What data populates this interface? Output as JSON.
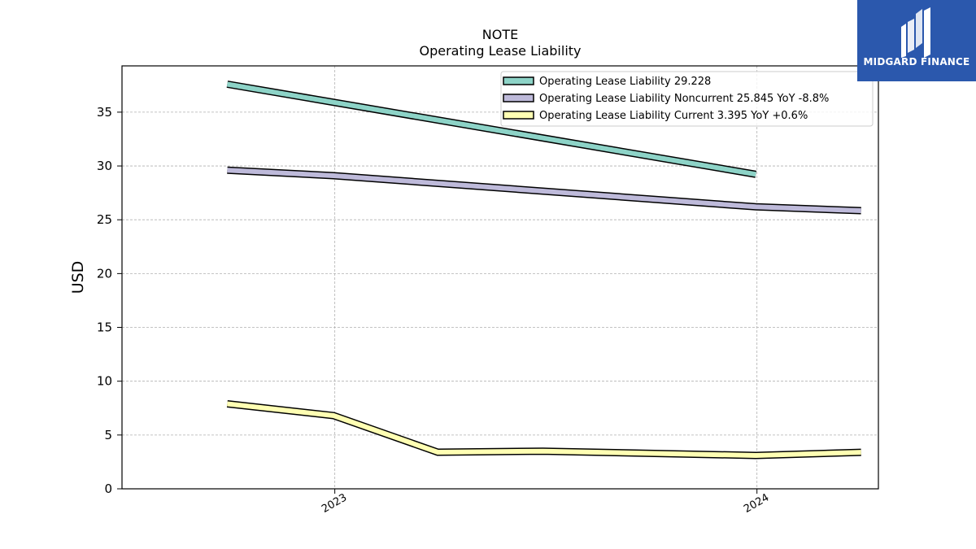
{
  "chart_data": {
    "type": "line",
    "title": "NOTE",
    "subtitle": "Operating Lease Liability",
    "ylabel": "USD",
    "xlabel": "",
    "ylim": [
      0,
      39.3
    ],
    "xlim": [
      "2022-07-01",
      "2024-04-15"
    ],
    "yticks": [
      0,
      5,
      10,
      15,
      20,
      25,
      30,
      35
    ],
    "xticks": [
      {
        "date": "2023-01-01",
        "label": "2023"
      },
      {
        "date": "2024-01-01",
        "label": "2024"
      }
    ],
    "grid": true,
    "legend_position": "top-right",
    "series": [
      {
        "name": "Operating Lease Liability",
        "legend_label": "Operating Lease Liability  29.228",
        "color": "#8dd3c7",
        "points": [
          {
            "x": "2022-09-30",
            "y": 37.6
          },
          {
            "x": "2023-12-31",
            "y": 29.228
          }
        ]
      },
      {
        "name": "Operating Lease Liability Noncurrent",
        "legend_label": "Operating Lease Liability Noncurrent  25.845 YoY -8.8%",
        "color": "#bebada",
        "points": [
          {
            "x": "2022-09-30",
            "y": 29.6
          },
          {
            "x": "2022-12-31",
            "y": 29.1
          },
          {
            "x": "2023-12-31",
            "y": 26.2
          },
          {
            "x": "2024-03-31",
            "y": 25.845
          }
        ]
      },
      {
        "name": "Operating Lease Liability Current",
        "legend_label": "Operating Lease Liability Current  3.395 YoY +0.6%",
        "color": "#ffffb3",
        "points": [
          {
            "x": "2022-09-30",
            "y": 7.9
          },
          {
            "x": "2022-12-31",
            "y": 6.8
          },
          {
            "x": "2023-03-31",
            "y": 3.4
          },
          {
            "x": "2023-06-30",
            "y": 3.5
          },
          {
            "x": "2023-12-31",
            "y": 3.1
          },
          {
            "x": "2024-03-31",
            "y": 3.395
          }
        ]
      }
    ]
  },
  "logo": {
    "text": "MIDGARD FINANCE",
    "icon": "midgard-logo-icon",
    "background": "#2b58ad"
  }
}
